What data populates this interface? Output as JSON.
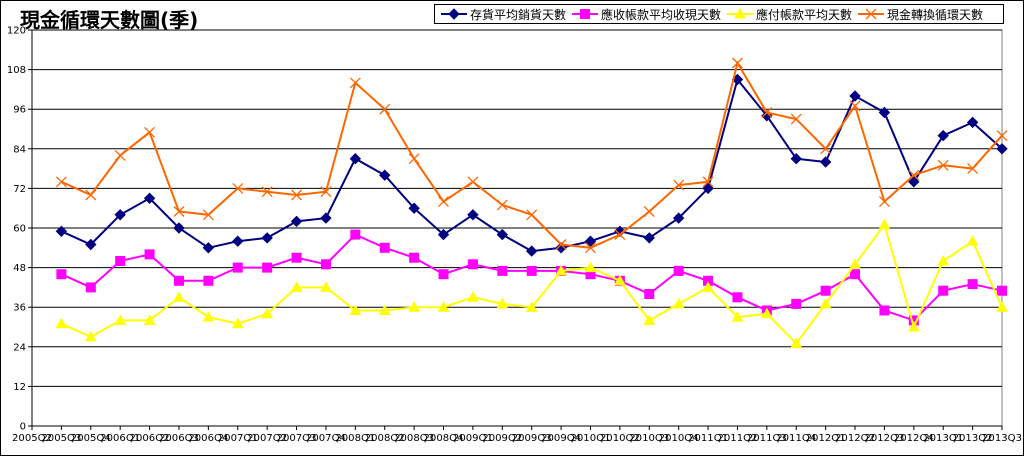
{
  "chart_data": {
    "type": "line",
    "title": "現金循環天數圖(季)",
    "xlabel": "",
    "ylabel": "",
    "ylim": [
      0,
      120
    ],
    "yticks": [
      0,
      12,
      24,
      36,
      48,
      60,
      72,
      84,
      96,
      108,
      120
    ],
    "grid": true,
    "legend_position": "top-right",
    "categories": [
      "2005Q2",
      "2005Q3",
      "2005Q4",
      "2006Q1",
      "2006Q2",
      "2006Q3",
      "2006Q4",
      "2007Q1",
      "2007Q2",
      "2007Q3",
      "2007Q4",
      "2008Q1",
      "2008Q2",
      "2008Q3",
      "2008Q4",
      "2009Q1",
      "2009Q2",
      "2009Q3",
      "2009Q4",
      "2010Q1",
      "2010Q2",
      "2010Q3",
      "2010Q4",
      "2011Q1",
      "2011Q2",
      "2011Q3",
      "2011Q4",
      "2012Q1",
      "2012Q2",
      "2012Q3",
      "2012Q4",
      "2013Q1",
      "2013Q2",
      "2013Q3"
    ],
    "series": [
      {
        "name": "存貨平均銷貨天數",
        "color": "#000080",
        "marker": "diamond",
        "values": [
          null,
          59,
          55,
          64,
          69,
          60,
          54,
          56,
          57,
          62,
          63,
          81,
          76,
          66,
          58,
          64,
          58,
          53,
          54,
          56,
          59,
          57,
          63,
          72,
          105,
          94,
          81,
          80,
          100,
          95,
          74,
          88,
          92,
          84
        ]
      },
      {
        "name": "應收帳款平均收現天數",
        "color": "#FF00FF",
        "marker": "square",
        "values": [
          null,
          46,
          42,
          50,
          52,
          44,
          44,
          48,
          48,
          51,
          49,
          58,
          54,
          51,
          46,
          49,
          47,
          47,
          47,
          46,
          44,
          40,
          47,
          44,
          39,
          35,
          37,
          41,
          46,
          35,
          32,
          41,
          43,
          41
        ]
      },
      {
        "name": "應付帳款平均天數",
        "color": "#FFFF00",
        "marker": "triangle",
        "values": [
          null,
          31,
          27,
          32,
          32,
          39,
          33,
          31,
          34,
          42,
          42,
          35,
          35,
          36,
          36,
          39,
          37,
          36,
          47,
          48,
          44,
          32,
          37,
          42,
          33,
          34,
          25,
          37,
          49,
          61,
          30,
          50,
          56,
          36
        ]
      },
      {
        "name": "現金轉換循環天數",
        "color": "#FF6600",
        "marker": "x",
        "values": [
          null,
          74,
          70,
          82,
          89,
          65,
          64,
          72,
          71,
          70,
          71,
          104,
          96,
          81,
          68,
          74,
          67,
          64,
          55,
          54,
          58,
          65,
          73,
          74,
          110,
          95,
          93,
          84,
          97,
          68,
          76,
          79,
          78,
          88
        ]
      }
    ]
  }
}
